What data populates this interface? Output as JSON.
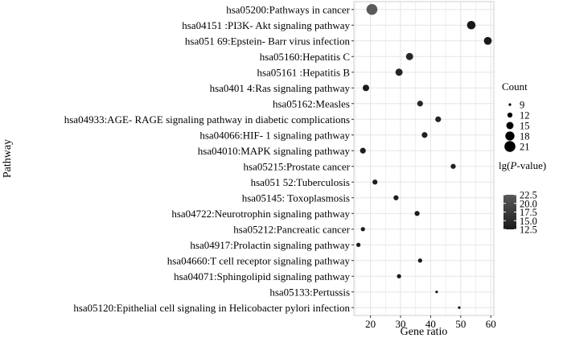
{
  "chart_data": {
    "type": "scatter",
    "xlabel": "Gene ratio",
    "ylabel": "Pathway",
    "xlim": [
      14.5,
      61
    ],
    "x_ticks": [
      "20",
      "30",
      "40",
      "50",
      "60"
    ],
    "grid": true,
    "legend_placement": "right",
    "categories": [
      "hsa05200:Pathways in cancer",
      "hsa04151 :PI3K- Akt signaling pathway",
      "hsa051 69:Epstein- Barr virus infection",
      "hsa05160:Hepatitis C",
      "hsa05161 :Hepatitis B",
      "hsa0401 4:Ras signaling pathway",
      "hsa05162:Measles",
      "hsa04933:AGE- RAGE signaling pathway in diabetic complications",
      "hsa04066:HIF- 1 signaling pathway",
      "hsa04010:MAPK signaling pathway",
      "hsa05215:Prostate cancer",
      "hsa051 52:Tuberculosis",
      "hsa05145: Toxoplasmosis",
      "hsa04722:Neurotrophin signaling pathway",
      "hsa05212:Pancreatic cancer",
      "hsa04917:Prolactin signaling pathway",
      "hsa04660:T cell receptor signaling pathway",
      "hsa04071:Sphingolipid signaling pathway",
      "hsa05133:Pertussis",
      "hsa05120:Epithelial cell signaling in Helicobacter pylori infection"
    ],
    "points": [
      {
        "x": 20.5,
        "count": 21,
        "lgp": 22.5
      },
      {
        "x": 53.5,
        "count": 17,
        "lgp": 12.5
      },
      {
        "x": 59.0,
        "count": 16,
        "lgp": 12.6
      },
      {
        "x": 33.0,
        "count": 15,
        "lgp": 14.5
      },
      {
        "x": 29.5,
        "count": 15,
        "lgp": 14.0
      },
      {
        "x": 18.5,
        "count": 14,
        "lgp": 13.0
      },
      {
        "x": 36.5,
        "count": 13,
        "lgp": 14.5
      },
      {
        "x": 42.5,
        "count": 13,
        "lgp": 14.0
      },
      {
        "x": 38.0,
        "count": 13,
        "lgp": 13.5
      },
      {
        "x": 17.5,
        "count": 13,
        "lgp": 13.0
      },
      {
        "x": 47.5,
        "count": 12,
        "lgp": 13.5
      },
      {
        "x": 21.5,
        "count": 12,
        "lgp": 13.5
      },
      {
        "x": 28.5,
        "count": 12,
        "lgp": 13.0
      },
      {
        "x": 35.5,
        "count": 12,
        "lgp": 13.0
      },
      {
        "x": 17.5,
        "count": 11,
        "lgp": 13.0
      },
      {
        "x": 16.0,
        "count": 11,
        "lgp": 12.5
      },
      {
        "x": 36.5,
        "count": 11,
        "lgp": 13.0
      },
      {
        "x": 29.5,
        "count": 11,
        "lgp": 12.5
      },
      {
        "x": 42.0,
        "count": 9,
        "lgp": 12.5
      },
      {
        "x": 49.5,
        "count": 9,
        "lgp": 12.5
      }
    ],
    "size_legend": {
      "title": "Count",
      "values": [
        "9",
        "12",
        "15",
        "18",
        "21"
      ]
    },
    "color_legend": {
      "title_prefix": "lg(",
      "title_italic": "P",
      "title_suffix": "-value)",
      "ticks": [
        "22.5",
        "20.0",
        "17.5",
        "15.0",
        "12.5"
      ],
      "range": [
        12.5,
        22.5
      ],
      "color_low": "#1a1a1a",
      "color_high": "#5a5a5a"
    },
    "panel_background": "#ffffff",
    "grid_color": "#e5e5e5"
  }
}
